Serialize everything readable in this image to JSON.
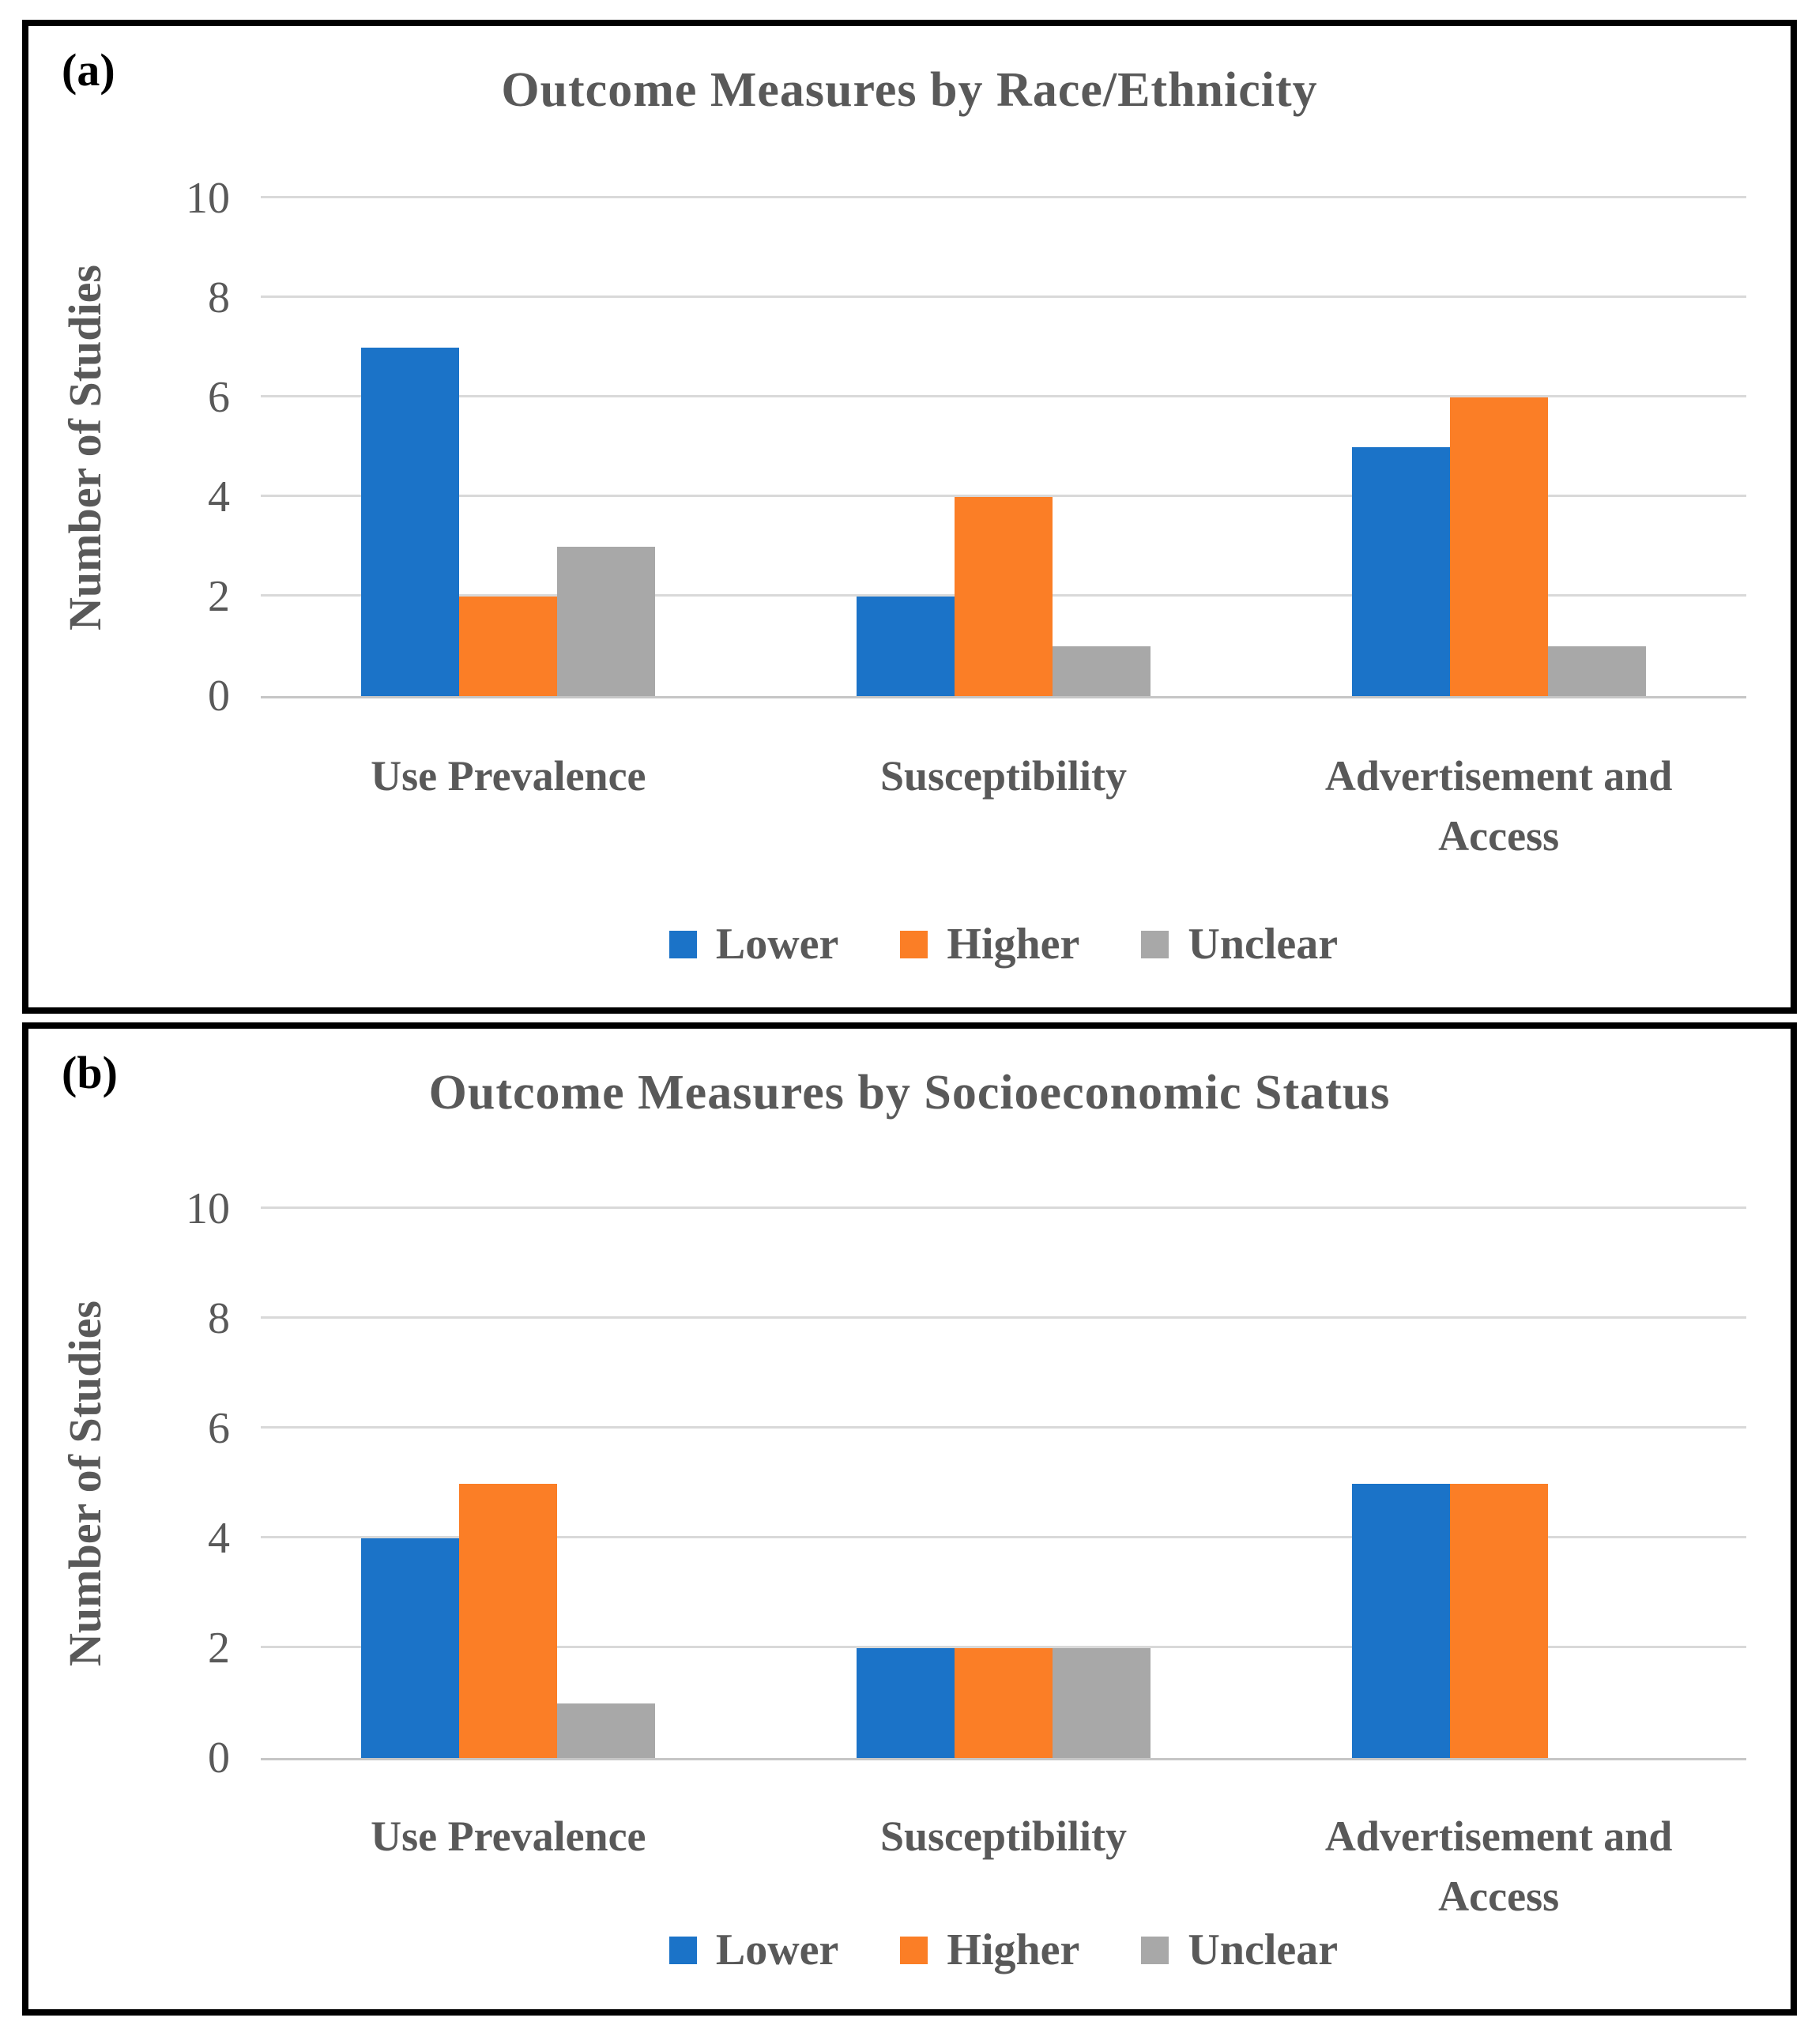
{
  "panels": [
    {
      "panel_label": "(a)",
      "title": "Outcome Measures by Race/Ethnicity",
      "y_axis_title": "Number of Studies"
    },
    {
      "panel_label": "(b)",
      "title": "Outcome Measures by Socioeconomic Status",
      "y_axis_title": "Number of Studies"
    }
  ],
  "chart_data": [
    {
      "type": "bar",
      "title": "Outcome Measures by Race/Ethnicity",
      "categories": [
        "Use Prevalence",
        "Susceptibility",
        "Advertisement and Access"
      ],
      "series": [
        {
          "name": "Lower",
          "color": "#1B73C8",
          "values": [
            7,
            2,
            5
          ]
        },
        {
          "name": "Higher",
          "color": "#FB7E26",
          "values": [
            2,
            4,
            6
          ]
        },
        {
          "name": "Unclear",
          "color": "#A8A8A8",
          "values": [
            3,
            1,
            1
          ]
        }
      ],
      "xlabel": "",
      "ylabel": "Number of Studies",
      "ylim": [
        0,
        10
      ],
      "yticks": [
        0,
        2,
        4,
        6,
        8,
        10
      ],
      "grid": true,
      "legend_position": "bottom",
      "legend": [
        "Lower",
        "Higher",
        "Unclear"
      ]
    },
    {
      "type": "bar",
      "title": "Outcome Measures by Socioeconomic Status",
      "categories": [
        "Use Prevalence",
        "Susceptibility",
        "Advertisement and Access"
      ],
      "series": [
        {
          "name": "Lower",
          "color": "#1B73C8",
          "values": [
            4,
            2,
            5
          ]
        },
        {
          "name": "Higher",
          "color": "#FB7E26",
          "values": [
            5,
            2,
            5
          ]
        },
        {
          "name": "Unclear",
          "color": "#A8A8A8",
          "values": [
            1,
            2,
            0
          ]
        }
      ],
      "xlabel": "",
      "ylabel": "Number of Studies",
      "ylim": [
        0,
        10
      ],
      "yticks": [
        0,
        2,
        4,
        6,
        8,
        10
      ],
      "grid": true,
      "legend_position": "bottom",
      "legend": [
        "Lower",
        "Higher",
        "Unclear"
      ]
    }
  ],
  "colors": {
    "bar_lower": "#1B73C8",
    "bar_higher": "#FB7E26",
    "bar_unclear": "#A8A8A8",
    "gridline": "#D9D9D9",
    "axis_line": "#C6C6C6",
    "text": "#595959",
    "panel_border": "#000000"
  }
}
